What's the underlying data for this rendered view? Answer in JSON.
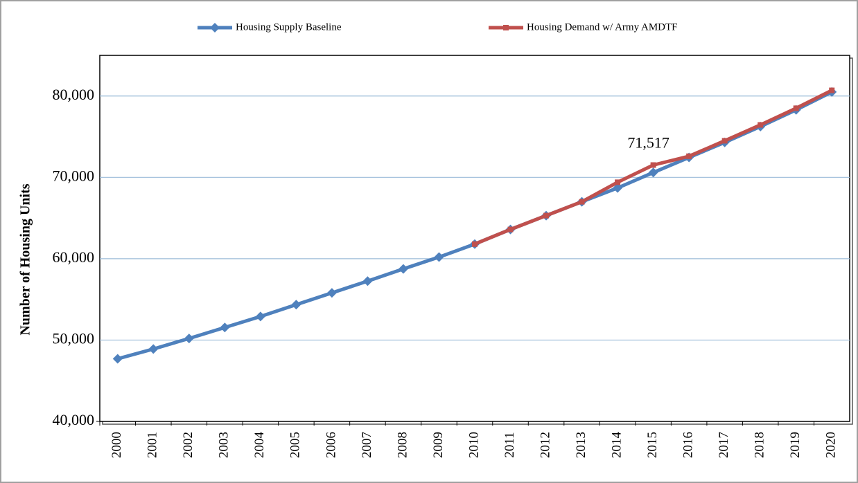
{
  "chart_data": {
    "type": "line",
    "y_label": "Number of Housing Units",
    "categories": [
      "2000",
      "2001",
      "2002",
      "2003",
      "2004",
      "2005",
      "2006",
      "2007",
      "2008",
      "2009",
      "2010",
      "2011",
      "2012",
      "2013",
      "2014",
      "2015",
      "2016",
      "2017",
      "2018",
      "2019",
      "2020"
    ],
    "series": [
      {
        "name": "Housing Supply Baseline",
        "color": "#4f81bd",
        "marker": "diamond",
        "values": [
          47700,
          48900,
          50200,
          51550,
          52900,
          54350,
          55800,
          57250,
          58750,
          60200,
          61800,
          63600,
          65300,
          67000,
          68700,
          70600,
          72450,
          74300,
          76250,
          78300,
          80500
        ]
      },
      {
        "name": "Housing Demand w/ Army AMDTF",
        "color": "#c0504d",
        "marker": "square",
        "values": [
          null,
          null,
          null,
          null,
          null,
          null,
          null,
          null,
          null,
          null,
          61800,
          63600,
          65300,
          67000,
          69400,
          71517,
          72600,
          74500,
          76450,
          78500,
          80700
        ],
        "value_labels": [
          null,
          null,
          null,
          null,
          null,
          null,
          null,
          null,
          null,
          null,
          null,
          null,
          null,
          null,
          null,
          "71,517",
          null,
          null,
          null,
          null,
          null
        ]
      }
    ],
    "ylim": [
      40000,
      85000
    ],
    "yticks": [
      {
        "value": 40000,
        "label": "40,000"
      },
      {
        "value": 50000,
        "label": "50,000"
      },
      {
        "value": 60000,
        "label": "60,000"
      },
      {
        "value": 70000,
        "label": "70,000"
      },
      {
        "value": 80000,
        "label": "80,000"
      }
    ],
    "grid": true,
    "legend": "top"
  }
}
